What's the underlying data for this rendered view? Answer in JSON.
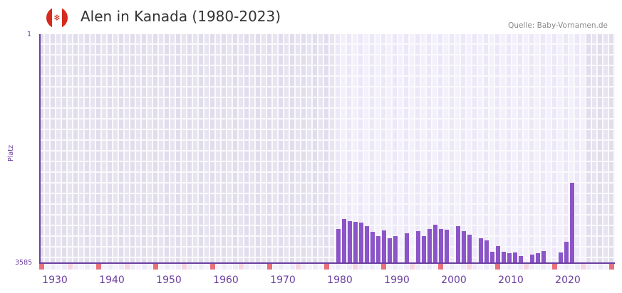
{
  "header": {
    "title": "Alen in Kanada (1980-2023)",
    "source": "Quelle: Baby-Vornamen.de",
    "flag_icon": "canada-flag-icon"
  },
  "colors": {
    "bar": "#8b55c8",
    "axis": "#6b3fa0",
    "marker_decade": "#e8707a",
    "marker_half": "#f5d5de",
    "bg_out": "#e4e0ee",
    "bg_in": "#efecfa"
  },
  "chart_data": {
    "type": "bar",
    "title": "Alen in Kanada (1980-2023)",
    "xlabel": "",
    "ylabel": "Platz",
    "y_axis_inverted": true,
    "ylim": [
      3585,
      1
    ],
    "x_range": [
      1928,
      2028
    ],
    "highlight_range": [
      1980,
      2023
    ],
    "x_tick_labels": [
      "1930",
      "1940",
      "1950",
      "1960",
      "1970",
      "1980",
      "1990",
      "2000",
      "2010",
      "2020"
    ],
    "y_tick_labels": [
      "1",
      "3585"
    ],
    "grid": true,
    "legend": null,
    "categories": [
      1980,
      1981,
      1982,
      1983,
      1984,
      1985,
      1986,
      1987,
      1988,
      1989,
      1990,
      1991,
      1992,
      1993,
      1994,
      1995,
      1996,
      1997,
      1998,
      1999,
      2000,
      2001,
      2002,
      2003,
      2004,
      2005,
      2006,
      2007,
      2008,
      2009,
      2010,
      2011,
      2012,
      2013,
      2014,
      2015,
      2016,
      2017,
      2018,
      2019,
      2020,
      2021,
      2022,
      2023
    ],
    "values": [
      3050,
      2895,
      2930,
      2940,
      2950,
      3005,
      3095,
      3160,
      3070,
      3195,
      3160,
      null,
      3115,
      null,
      3085,
      3160,
      3050,
      2985,
      3050,
      3060,
      null,
      3005,
      3085,
      3140,
      null,
      3195,
      3225,
      3405,
      3315,
      3405,
      3425,
      3415,
      3470,
      null,
      3450,
      3425,
      3395,
      null,
      null,
      3415,
      3250,
      2325,
      null,
      null
    ]
  },
  "footer": {}
}
